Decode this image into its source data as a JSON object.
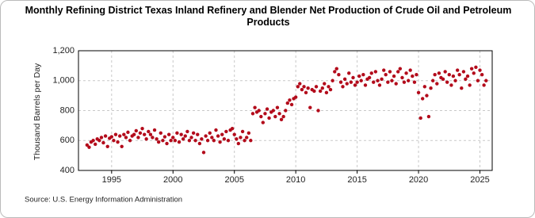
{
  "chart_data": {
    "type": "scatter",
    "title": "Monthly Refining District Texas Inland Refinery and Blender Net Production of Crude Oil and Petroleum Products",
    "y_label": "Thousand Barrels per Day",
    "source": "Source: U.S. Energy Information Administration",
    "color": "#b30b1b",
    "grid": true,
    "xlim": [
      1992.3,
      2026
    ],
    "ylim": [
      400,
      1200
    ],
    "xticks": [
      1995,
      2000,
      2005,
      2010,
      2015,
      2020,
      2025
    ],
    "yticks": [
      400,
      600,
      800,
      {
        "value": 1000,
        "label": "1,000"
      },
      {
        "value": 1200,
        "label": "1,200"
      }
    ],
    "x": [
      1993,
      1993.17,
      1993.33,
      1993.5,
      1993.67,
      1993.83,
      1994,
      1994.17,
      1994.33,
      1994.5,
      1994.67,
      1994.83,
      1995,
      1995.17,
      1995.33,
      1995.5,
      1995.67,
      1995.83,
      1996,
      1996.17,
      1996.33,
      1996.5,
      1996.67,
      1996.83,
      1997,
      1997.17,
      1997.33,
      1997.5,
      1997.67,
      1997.83,
      1998,
      1998.17,
      1998.33,
      1998.5,
      1998.67,
      1998.83,
      1999,
      1999.17,
      1999.33,
      1999.5,
      1999.67,
      1999.83,
      2000,
      2000.17,
      2000.33,
      2000.5,
      2000.67,
      2000.83,
      2001,
      2001.17,
      2001.33,
      2001.5,
      2001.67,
      2001.83,
      2002,
      2002.17,
      2002.33,
      2002.5,
      2002.67,
      2002.83,
      2003,
      2003.17,
      2003.33,
      2003.5,
      2003.67,
      2003.83,
      2004,
      2004.17,
      2004.33,
      2004.5,
      2004.67,
      2004.83,
      2005,
      2005.17,
      2005.33,
      2005.5,
      2005.67,
      2005.83,
      2006,
      2006.17,
      2006.33,
      2006.5,
      2006.67,
      2006.83,
      2007,
      2007.17,
      2007.33,
      2007.5,
      2007.67,
      2007.83,
      2008,
      2008.17,
      2008.33,
      2008.5,
      2008.67,
      2008.83,
      2009,
      2009.17,
      2009.33,
      2009.5,
      2009.67,
      2009.83,
      2010,
      2010.17,
      2010.33,
      2010.5,
      2010.67,
      2010.83,
      2011,
      2011.17,
      2011.33,
      2011.5,
      2011.67,
      2011.83,
      2012,
      2012.17,
      2012.33,
      2012.5,
      2012.67,
      2012.83,
      2013,
      2013.17,
      2013.33,
      2013.5,
      2013.67,
      2013.83,
      2014,
      2014.17,
      2014.33,
      2014.5,
      2014.67,
      2014.83,
      2015,
      2015.17,
      2015.33,
      2015.5,
      2015.67,
      2015.83,
      2016,
      2016.17,
      2016.33,
      2016.5,
      2016.67,
      2016.83,
      2017,
      2017.17,
      2017.33,
      2017.5,
      2017.67,
      2017.83,
      2018,
      2018.17,
      2018.33,
      2018.5,
      2018.67,
      2018.83,
      2019,
      2019.17,
      2019.33,
      2019.5,
      2019.67,
      2019.83,
      2020,
      2020.17,
      2020.33,
      2020.5,
      2020.67,
      2020.83,
      2021,
      2021.17,
      2021.33,
      2021.5,
      2021.67,
      2021.83,
      2022,
      2022.17,
      2022.33,
      2022.5,
      2022.67,
      2022.83,
      2023,
      2023.17,
      2023.33,
      2023.5,
      2023.67,
      2023.83,
      2024,
      2024.17,
      2024.33,
      2024.5,
      2024.67,
      2024.83,
      2025,
      2025.17,
      2025.33,
      2025.5
    ],
    "values": [
      570,
      555,
      590,
      600,
      575,
      610,
      600,
      620,
      585,
      630,
      560,
      615,
      625,
      600,
      640,
      590,
      630,
      560,
      640,
      620,
      655,
      600,
      630,
      640,
      665,
      620,
      650,
      680,
      640,
      610,
      660,
      640,
      620,
      670,
      610,
      590,
      650,
      600,
      625,
      580,
      640,
      600,
      620,
      600,
      650,
      590,
      640,
      610,
      630,
      660,
      600,
      620,
      650,
      600,
      640,
      580,
      610,
      520,
      630,
      600,
      650,
      620,
      600,
      670,
      630,
      590,
      640,
      610,
      660,
      600,
      670,
      680,
      640,
      610,
      580,
      620,
      660,
      600,
      620,
      650,
      600,
      780,
      820,
      790,
      800,
      760,
      720,
      780,
      810,
      750,
      790,
      800,
      760,
      820,
      780,
      740,
      760,
      800,
      850,
      870,
      840,
      880,
      890,
      960,
      980,
      940,
      960,
      920,
      950,
      820,
      940,
      930,
      960,
      800,
      930,
      950,
      980,
      920,
      960,
      940,
      1000,
      1060,
      1080,
      1040,
      990,
      960,
      1010,
      980,
      1050,
      990,
      1020,
      970,
      990,
      1030,
      1000,
      1040,
      970,
      1010,
      1020,
      1050,
      990,
      1060,
      1000,
      970,
      1010,
      1070,
      1040,
      990,
      1060,
      1000,
      1030,
      980,
      1060,
      1080,
      1020,
      990,
      1050,
      1000,
      1070,
      1030,
      990,
      1040,
      920,
      750,
      880,
      960,
      900,
      760,
      950,
      1000,
      1040,
      980,
      1050,
      1020,
      1010,
      1060,
      990,
      1040,
      970,
      1030,
      1000,
      1070,
      1040,
      950,
      1060,
      1010,
      1030,
      970,
      1080,
      1050,
      1090,
      1000,
      1070,
      1040,
      970,
      1000
    ]
  }
}
